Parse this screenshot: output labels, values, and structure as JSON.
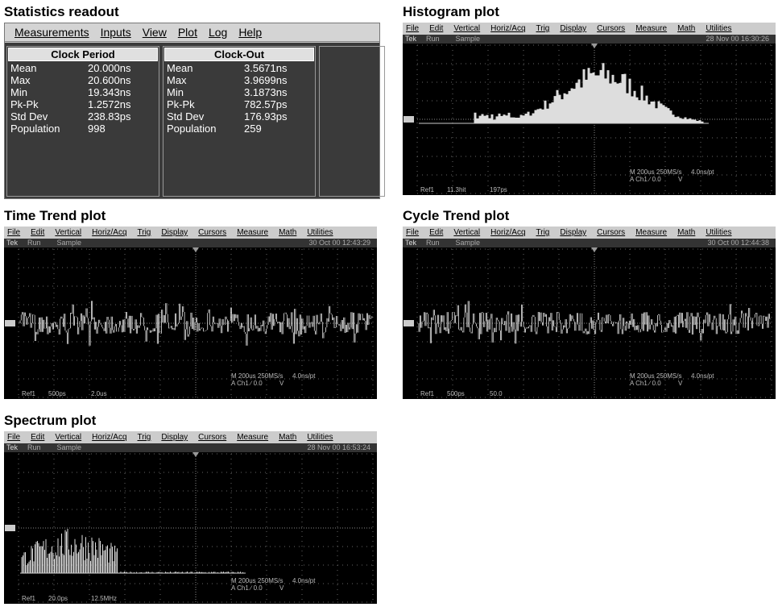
{
  "statistics": {
    "title": "Statistics readout",
    "menu": [
      "Measurements",
      "Inputs",
      "View",
      "Plot",
      "Log",
      "Help"
    ],
    "columns": [
      {
        "header": "Clock Period",
        "rows": [
          [
            "Mean",
            "20.000ns"
          ],
          [
            "Max",
            "20.600ns"
          ],
          [
            "Min",
            "19.343ns"
          ],
          [
            "Pk-Pk",
            "1.2572ns"
          ],
          [
            "Std Dev",
            "238.83ps"
          ],
          [
            "Population",
            "998"
          ]
        ]
      },
      {
        "header": "Clock-Out",
        "rows": [
          [
            "Mean",
            "3.5671ns"
          ],
          [
            "Max",
            "3.9699ns"
          ],
          [
            "Min",
            "3.1873ns"
          ],
          [
            "Pk-Pk",
            "782.57ps"
          ],
          [
            "Std Dev",
            "176.93ps"
          ],
          [
            "Population",
            "259"
          ]
        ]
      }
    ]
  },
  "scopes": [
    {
      "title": "Histogram plot",
      "menu": [
        "File",
        "Edit",
        "Vertical",
        "Horiz/Acq",
        "Trig",
        "Display",
        "Cursors",
        "Measure",
        "Math",
        "Utilities"
      ],
      "status": [
        "Tek",
        "Run",
        "Sample"
      ],
      "timestamp": "28 Nov 00 16:30:26",
      "readout": [
        "M 200us 250MS/s",
        "4.0ns/pt",
        "A Ch1 ∕ 0.0",
        "V"
      ],
      "ref": [
        "Ref1",
        "11.3hit",
        "197ps"
      ]
    },
    {
      "title": "Time Trend plot",
      "menu": [
        "File",
        "Edit",
        "Vertical",
        "Horiz/Acq",
        "Trig",
        "Display",
        "Cursors",
        "Measure",
        "Math",
        "Utilities"
      ],
      "status": [
        "Tek",
        "Run",
        "Sample"
      ],
      "timestamp": "30 Oct 00 12:43:29",
      "readout": [
        "M 200us 250MS/s",
        "4.0ns/pt",
        "A Ch1 ∕ 0.0",
        "V"
      ],
      "ref": [
        "Ref1",
        "500ps",
        "2.0us"
      ]
    },
    {
      "title": "Cycle Trend plot",
      "menu": [
        "File",
        "Edit",
        "Vertical",
        "Horiz/Acq",
        "Trig",
        "Display",
        "Cursors",
        "Measure",
        "Math",
        "Utilities"
      ],
      "status": [
        "Tek",
        "Run",
        "Sample"
      ],
      "timestamp": "30 Oct 00 12:44:38",
      "readout": [
        "M 200us 250MS/s",
        "4.0ns/pt",
        "A Ch1 ∕ 0.0",
        "V"
      ],
      "ref": [
        "Ref1",
        "500ps",
        "50.0"
      ]
    },
    {
      "title": "Spectrum plot",
      "menu": [
        "File",
        "Edit",
        "Vertical",
        "Horiz/Acq",
        "Trig",
        "Display",
        "Cursors",
        "Measure",
        "Math",
        "Utilities"
      ],
      "status": [
        "Tek",
        "Run",
        "Sample"
      ],
      "timestamp": "28 Nov 00 16:53:24",
      "readout": [
        "M 200us 250MS/s",
        "4.0ns/pt",
        "A Ch1 ∕ 0.0",
        "V"
      ],
      "ref": [
        "Ref1",
        "20.0ps",
        "12.5MHz"
      ]
    }
  ]
}
